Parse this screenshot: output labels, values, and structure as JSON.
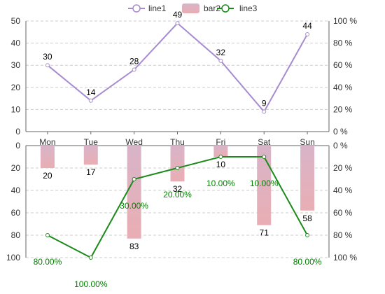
{
  "chart_data": {
    "type": "line",
    "categories": [
      "Mon",
      "Tue",
      "Wed",
      "Thu",
      "Fri",
      "Sat",
      "Sun"
    ],
    "legend": {
      "position": "top-center",
      "items": [
        "line1",
        "bar2",
        "line3"
      ]
    },
    "colors": {
      "line1": "#a78bd0",
      "bar2_top": "#d8b4c8",
      "bar2_bottom": "#e9aeb4",
      "line3": "#1b8a1b",
      "percent_label": "#008000",
      "grid": "#cccccc",
      "axis": "#666666"
    },
    "top": {
      "series": [
        {
          "name": "line1",
          "type": "line",
          "values": [
            30,
            14,
            28,
            49,
            32,
            9,
            44
          ]
        }
      ],
      "y_left": {
        "range": [
          0,
          50
        ],
        "ticks": [
          "0",
          "10",
          "20",
          "30",
          "40",
          "50"
        ]
      },
      "y_right": {
        "range": [
          0,
          100
        ],
        "ticks": [
          "0 %",
          "20 %",
          "40 %",
          "60 %",
          "80 %",
          "100 %"
        ]
      },
      "grid": true
    },
    "bottom": {
      "series": [
        {
          "name": "bar2",
          "type": "bar",
          "values": [
            20,
            17,
            83,
            32,
            10,
            71,
            58
          ]
        },
        {
          "name": "line3",
          "type": "line",
          "values": [
            80,
            100,
            30,
            20,
            10,
            10,
            80
          ],
          "labels": [
            "80.00%",
            "100.00%",
            "30.00%",
            "20.00%",
            "10.00%",
            "10.00%",
            "80.00%"
          ]
        }
      ],
      "y_left": {
        "range": [
          0,
          100
        ],
        "inverted": true,
        "ticks": [
          "0",
          "20",
          "40",
          "60",
          "80",
          "100"
        ]
      },
      "y_right": {
        "range": [
          0,
          100
        ],
        "inverted": true,
        "ticks": [
          "0 %",
          "20 %",
          "40 %",
          "60 %",
          "80 %",
          "100 %"
        ]
      },
      "grid": true
    }
  }
}
